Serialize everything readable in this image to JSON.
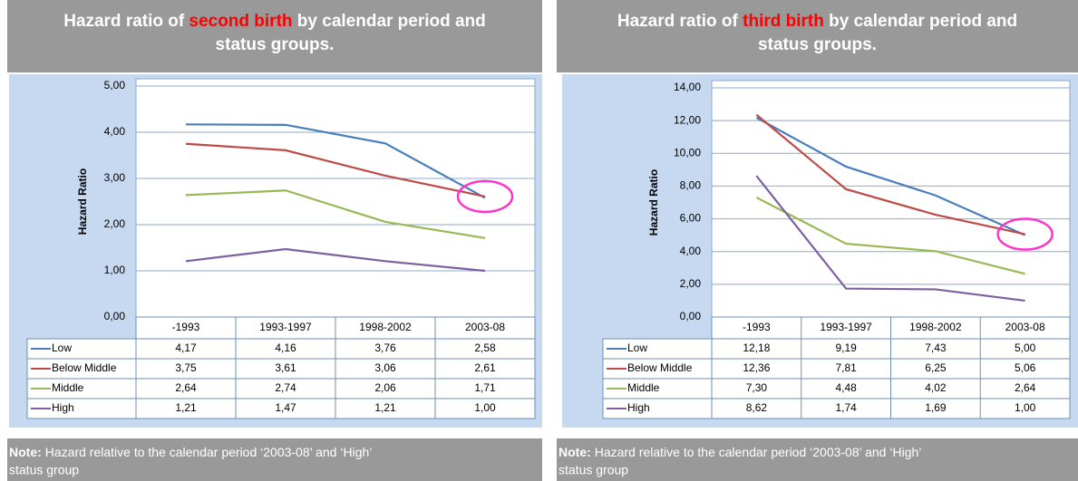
{
  "chart_data": [
    {
      "type": "line",
      "title": [
        "Hazard ratio of ",
        "second birth",
        " by calendar period and",
        "status groups."
      ],
      "y_label": "Hazard Ratio",
      "categories": [
        "-1993",
        "1993-1997",
        "1998-2002",
        "2003-08"
      ],
      "series": [
        {
          "name": "Low",
          "color": "#4a7ebb",
          "values": [
            4.17,
            4.16,
            3.76,
            2.58
          ],
          "value_labels": [
            "4,17",
            "4,16",
            "3,76",
            "2,58"
          ]
        },
        {
          "name": "Below Middle",
          "color": "#be4b48",
          "values": [
            3.75,
            3.61,
            3.06,
            2.61
          ],
          "value_labels": [
            "3,75",
            "3,61",
            "3,06",
            "2,61"
          ]
        },
        {
          "name": "Middle",
          "color": "#98b954",
          "values": [
            2.64,
            2.74,
            2.06,
            1.71
          ],
          "value_labels": [
            "2,64",
            "2,74",
            "2,06",
            "1,71"
          ]
        },
        {
          "name": "High",
          "color": "#7d60a0",
          "values": [
            1.21,
            1.47,
            1.21,
            1.0
          ],
          "value_labels": [
            "1,21",
            "1,47",
            "1,21",
            "1,00"
          ]
        }
      ],
      "ylim": [
        0,
        5
      ],
      "yticks": [
        {
          "value": 0,
          "label": "0,00"
        },
        {
          "value": 1,
          "label": "1,00"
        },
        {
          "value": 2,
          "label": "2,00"
        },
        {
          "value": 3,
          "label": "3,00"
        },
        {
          "value": 4,
          "label": "4,00"
        },
        {
          "value": 5,
          "label": "5,00"
        }
      ],
      "grid": true,
      "note_label": "Note:",
      "note": [
        "Hazard relative to the calendar period ‘2003-08’ and ‘High’",
        "status group"
      ]
    },
    {
      "type": "line",
      "title": [
        "Hazard ratio of ",
        "third birth",
        " by calendar period and",
        "status groups."
      ],
      "y_label": "Hazard Ratio",
      "categories": [
        "-1993",
        "1993-1997",
        "1998-2002",
        "2003-08"
      ],
      "series": [
        {
          "name": "Low",
          "color": "#4a7ebb",
          "values": [
            12.18,
            9.19,
            7.43,
            5.0
          ],
          "value_labels": [
            "12,18",
            "9,19",
            "7,43",
            "5,00"
          ]
        },
        {
          "name": "Below Middle",
          "color": "#be4b48",
          "values": [
            12.36,
            7.81,
            6.25,
            5.06
          ],
          "value_labels": [
            "12,36",
            "7,81",
            "6,25",
            "5,06"
          ]
        },
        {
          "name": "Middle",
          "color": "#98b954",
          "values": [
            7.3,
            4.48,
            4.02,
            2.64
          ],
          "value_labels": [
            "7,30",
            "4,48",
            "4,02",
            "2,64"
          ]
        },
        {
          "name": "High",
          "color": "#7d60a0",
          "values": [
            8.62,
            1.74,
            1.69,
            1.0
          ],
          "value_labels": [
            "8,62",
            "1,74",
            "1,69",
            "1,00"
          ]
        }
      ],
      "ylim": [
        0,
        14
      ],
      "yticks": [
        {
          "value": 0,
          "label": "0,00"
        },
        {
          "value": 2,
          "label": "2,00"
        },
        {
          "value": 4,
          "label": "4,00"
        },
        {
          "value": 6,
          "label": "6,00"
        },
        {
          "value": 8,
          "label": "8,00"
        },
        {
          "value": 10,
          "label": "10,00"
        },
        {
          "value": 12,
          "label": "12,00"
        },
        {
          "value": 14,
          "label": "14,00"
        }
      ],
      "grid": true,
      "note_label": "Note:",
      "note": [
        "Hazard relative to the calendar period ‘2003-08’ and ‘High’",
        "status group"
      ]
    }
  ]
}
